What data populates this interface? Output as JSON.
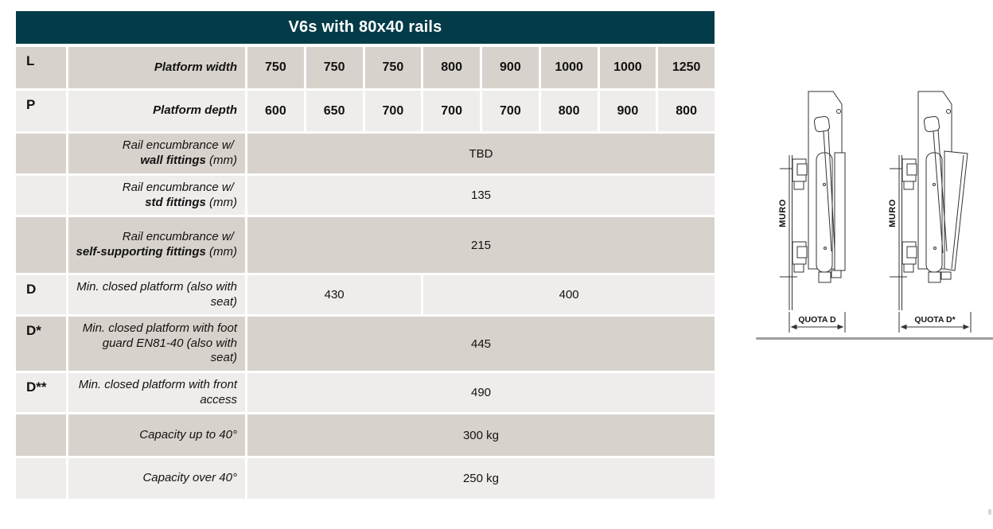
{
  "page": {
    "title": "V6s with 80x40 rails"
  },
  "table": {
    "columns": 8,
    "rows": [
      {
        "key": "L",
        "shade": "dark",
        "label": [
          {
            "text": "Platform width",
            "bold": true
          }
        ],
        "cells": [
          {
            "text": "750",
            "span": 1,
            "bold": true
          },
          {
            "text": "750",
            "span": 1,
            "bold": true
          },
          {
            "text": "750",
            "span": 1,
            "bold": true
          },
          {
            "text": "800",
            "span": 1,
            "bold": true
          },
          {
            "text": "900",
            "span": 1,
            "bold": true
          },
          {
            "text": "1000",
            "span": 1,
            "bold": true
          },
          {
            "text": "1000",
            "span": 1,
            "bold": true
          },
          {
            "text": "1250",
            "span": 1,
            "bold": true
          }
        ]
      },
      {
        "key": "P",
        "shade": "light",
        "label": [
          {
            "text": "Platform depth",
            "bold": true
          }
        ],
        "cells": [
          {
            "text": "600",
            "span": 1,
            "bold": true
          },
          {
            "text": "650",
            "span": 1,
            "bold": true
          },
          {
            "text": "700",
            "span": 1,
            "bold": true
          },
          {
            "text": "700",
            "span": 1,
            "bold": true
          },
          {
            "text": "700",
            "span": 1,
            "bold": true
          },
          {
            "text": "800",
            "span": 1,
            "bold": true
          },
          {
            "text": "900",
            "span": 1,
            "bold": true
          },
          {
            "text": "800",
            "span": 1,
            "bold": true
          }
        ]
      },
      {
        "key": "",
        "shade": "dark",
        "label": [
          {
            "text": "Rail encumbrance w/ ",
            "bold": false
          },
          {
            "text": "wall fittings",
            "bold": true
          },
          {
            "text": " (mm)",
            "bold": false
          }
        ],
        "cells": [
          {
            "text": "TBD",
            "span": 8
          }
        ]
      },
      {
        "key": "",
        "shade": "light",
        "label": [
          {
            "text": "Rail encumbrance w/ ",
            "bold": false
          },
          {
            "text": "std fittings",
            "bold": true
          },
          {
            "text": " (mm)",
            "bold": false
          }
        ],
        "cells": [
          {
            "text": "135",
            "span": 8
          }
        ]
      },
      {
        "key": "",
        "shade": "dark",
        "label": [
          {
            "text": "Rail encumbrance w/ ",
            "bold": false
          },
          {
            "text": "self-supporting fittings",
            "bold": true
          },
          {
            "text": " (mm)",
            "bold": false
          }
        ],
        "cells": [
          {
            "text": "215",
            "span": 8
          }
        ]
      },
      {
        "key": "D",
        "shade": "light",
        "label": [
          {
            "text": "Min. closed platform (also with seat)",
            "bold": false
          }
        ],
        "cells": [
          {
            "text": "430",
            "span": 3
          },
          {
            "text": "400",
            "span": 5
          }
        ]
      },
      {
        "key": "D*",
        "shade": "dark",
        "label": [
          {
            "text": "Min. closed platform with foot guard EN81-40 (also with seat)",
            "bold": false
          }
        ],
        "cells": [
          {
            "text": "445",
            "span": 8
          }
        ]
      },
      {
        "key": "D**",
        "shade": "light",
        "label": [
          {
            "text": "Min. closed platform with front access",
            "bold": false
          }
        ],
        "cells": [
          {
            "text": "490",
            "span": 8
          }
        ]
      },
      {
        "key": "",
        "shade": "dark",
        "label": [
          {
            "text": "Capacity up to 40°",
            "bold": false
          }
        ],
        "cells": [
          {
            "text": "300 kg",
            "span": 8
          }
        ]
      },
      {
        "key": "",
        "shade": "light",
        "label": [
          {
            "text": "Capacity over 40°",
            "bold": false
          }
        ],
        "cells": [
          {
            "text": "250 kg",
            "span": 8
          }
        ]
      }
    ]
  },
  "diagram": {
    "wall_label": "MURO",
    "dim_label_d": "QUOTA D",
    "dim_label_dstar": "QUOTA D*"
  },
  "colors": {
    "header_bg": "#033b48",
    "row_dark": "#d8d2cc",
    "row_light": "#efedeb",
    "text": "#121212",
    "drawing_line": "#333333",
    "rule": "#9e9e9e"
  }
}
